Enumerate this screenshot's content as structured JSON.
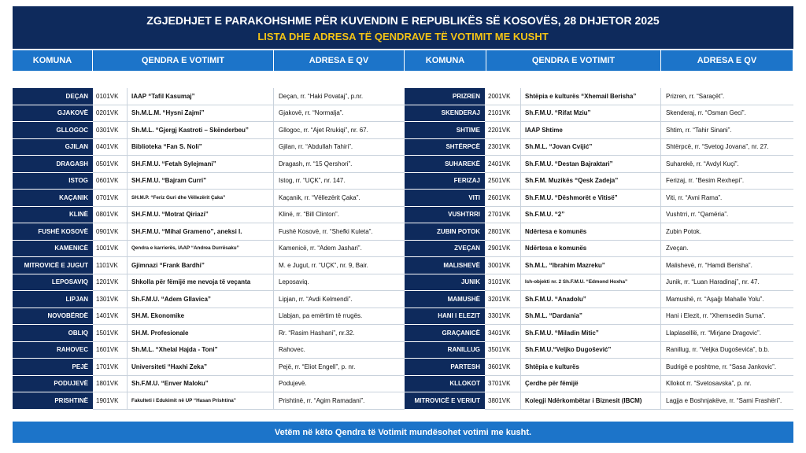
{
  "header": {
    "title": "ZGJEDHJET E PARAKOHSHME PËR KUVENDIN E REPUBLIKËS SË KOSOVËS, 28 DHJETOR 2025",
    "subtitle": "LISTA DHE ADRESA TË QENDRAVE TË VOTIMIT ME KUSHT"
  },
  "columns": [
    "KOMUNA",
    "QENDRA E VOTIMIT",
    "ADRESA E QV",
    "KOMUNA",
    "QENDRA E VOTIMIT",
    "ADRESA E QV"
  ],
  "tables": {
    "left": {
      "rows": [
        [
          "DEÇAN",
          "0101VK",
          "IAAP “Tafil Kasumaj”",
          "Deçan, rr. “Haki Povataj”, p.nr."
        ],
        [
          "GJAKOVË",
          "0201VK",
          "Sh.M.L.M. “Hysni Zajmi”",
          "Gjakovë, rr. “Normalja”."
        ],
        [
          "GLLOGOC",
          "0301VK",
          "Sh.M.L. “Gjergj Kastroti – Skënderbeu”",
          "Gllogoc, rr. “Ajet Rrukiqi”, nr. 67."
        ],
        [
          "GJILAN",
          "0401VK",
          "Biblioteka “Fan S. Noli”",
          "Gjilan, rr. “Abdullah Tahiri”."
        ],
        [
          "DRAGASH",
          "0501VK",
          "SH.F.M.U. “Fetah Sylejmani”",
          "Dragash, rr. “15 Qershori”."
        ],
        [
          "ISTOG",
          "0601VK",
          "SH.F.M.U. “Bajram Curri”",
          "Istog, rr. “UÇK”, nr. 147."
        ],
        [
          "KAÇANIK",
          "0701VK",
          "SH.M.P. “Feriz Guri dhe Vëllezërit Çaka”",
          "Kaçanik, rr. “Vëllezërit Çaka”."
        ],
        [
          "KLINË",
          "0801VK",
          "SH.F.M.U. “Motrat Qiriazi”",
          "Klinë, rr. “Bill Clinton”."
        ],
        [
          "FUSHË KOSOVË",
          "0901VK",
          "SH.F.M.U. “Mihal Grameno”, aneksi I.",
          "Fushë Kosovë, rr. “Shefki Kuleta”."
        ],
        [
          "KAMENICË",
          "1001VK",
          "Qendra e karrierës, IAAP “Andrea Durrësaku”",
          "Kamenicë, rr. “Adem Jashari”."
        ],
        [
          "MITROVICË E JUGUT",
          "1101VK",
          "Gjimnazi “Frank Bardhi”",
          "M. e Jugut, rr. “UÇK”, nr. 9, Bair."
        ],
        [
          "LEPOSAVIQ",
          "1201VK",
          "Shkolla për fëmijë me nevoja të veçanta",
          "Leposaviq."
        ],
        [
          "LIPJAN",
          "1301VK",
          "Sh.F.M.U. “Adem Gllavica”",
          "Lipjan, rr. “Avdi Kelmendi”."
        ],
        [
          "NOVOBËRDË",
          "1401VK",
          "SH.M. Ekonomike",
          "Llabjan, pa emërtim të rrugës."
        ],
        [
          "OBLIQ",
          "1501VK",
          "SH.M. Profesionale",
          "Rr. “Rasim Hashani”, nr.32."
        ],
        [
          "RAHOVEC",
          "1601VK",
          "Sh.M.L. “Xhelal Hajda - Toni”",
          "Rahovec."
        ],
        [
          "PEJË",
          "1701VK",
          "Universiteti “Haxhi Zeka”",
          "Pejë, rr. “Eliot Engell”, p. nr."
        ],
        [
          "PODUJEVË",
          "1801VK",
          "Sh.F.M.U. “Enver Maloku”",
          "Podujevë."
        ],
        [
          "PRISHTINË",
          "1901VK",
          "Fakulteti i Edukimit në UP “Hasan Prishtina”",
          "Prishtinë, rr. “Agim Ramadani”."
        ]
      ]
    },
    "right": {
      "rows": [
        [
          "PRIZREN",
          "2001VK",
          "Shtëpia e kulturës “Xhemail Berisha”",
          "Prizren, rr. “Saraçët”."
        ],
        [
          "SKENDERAJ",
          "2101VK",
          "Sh.F.M.U. “Rifat Mziu”",
          "Skenderaj, rr. “Osman Geci”."
        ],
        [
          "SHTIME",
          "2201VK",
          "IAAP Shtime",
          "Shtim, rr. “Tahir Sinani”."
        ],
        [
          "SHTËRPCË",
          "2301VK",
          "Sh.M.L. “Jovan Cvijić”",
          "Shtërpcë, rr. “Svetog Jovana”, nr. 27."
        ],
        [
          "SUHAREKË",
          "2401VK",
          "Sh.F.M.U. “Destan Bajraktari”",
          "Suharekë, rr. “Avdyl Kuçi”."
        ],
        [
          "FERIZAJ",
          "2501VK",
          "Sh.F.M. Muzikës “Qesk Zadeja”",
          "Ferizaj, rr. “Besim Rexhepi”."
        ],
        [
          "VITI",
          "2601VK",
          "Sh.F.M.U. “Dëshmorët e Vitisë”",
          "Viti, rr. “Avni Rama”."
        ],
        [
          "VUSHTRRI",
          "2701VK",
          "Sh.F.M.U. “2”",
          "Vushtrri, rr. “Qamëria”."
        ],
        [
          "ZUBIN POTOK",
          "2801VK",
          "Ndërtesa e komunës",
          "Zubin Potok."
        ],
        [
          "ZVEÇAN",
          "2901VK",
          "Ndërtesa e komunës",
          "Zveçan."
        ],
        [
          "MALISHEVË",
          "3001VK",
          "Sh.M.L. “Ibrahim Mazreku”",
          "Malishevë, rr. “Hamdi Berisha”."
        ],
        [
          "JUNIK",
          "3101VK",
          "Ish-objekti nr. 2 Sh.F.M.U. “Edmond Hoxha”",
          "Junik, rr. “Luan Haradinaj”, nr. 47."
        ],
        [
          "MAMUSHË",
          "3201VK",
          "Sh.F.M.U. “Anadolu”",
          "Mamushë, rr. “Aşağı Mahalle Yolu”."
        ],
        [
          "HANI I ELEZIT",
          "3301VK",
          "Sh.M.L. “Dardania”",
          "Hani i Elezit, rr. “Xhemsedin Suma”."
        ],
        [
          "GRAÇANICË",
          "3401VK",
          "Sh.F.M.U. “Miladin Mitic”",
          "Llaplaselllë, rr. “Mirjane Dragovic”."
        ],
        [
          "RANILLUG",
          "3501VK",
          "Sh.F.M.U.“Veljko Dugošević”",
          "Ranillug, rr. “Veljka Dugoševića”, b.b."
        ],
        [
          "PARTESH",
          "3601VK",
          "Shtëpia e kulturës",
          "Budrigë e poshtme, rr. “Sasa Jankovic”."
        ],
        [
          "KLLOKOT",
          "3701VK",
          "Çerdhe për fëmijë",
          "Kllokot rr. “Svetosavska”, p. nr."
        ],
        [
          "MITROVICË E VERIUT",
          "3801VK",
          "Kolegji Ndërkombëtar i Biznesit (IBCM)",
          "Lagjja e Boshnjakëve, rr. “Sami Frashëri”."
        ]
      ]
    }
  },
  "footer": "Vetëm në këto Qendra të Votimit mundësohet votimi me kusht."
}
